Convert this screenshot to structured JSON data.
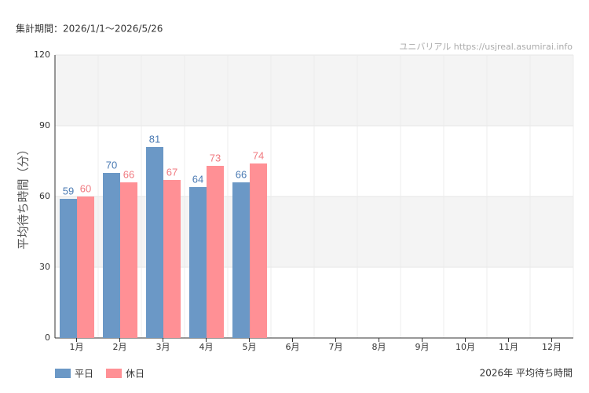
{
  "chart_data": {
    "type": "bar",
    "subtitle": "集計期間：2026/1/1～2026/5/26",
    "source": "ユニバリアル  https://usjreal.asumirai.info",
    "y_label": "平均待ち時間（分）",
    "footer": "2026年 平均待ち時間",
    "categories": [
      "1月",
      "2月",
      "3月",
      "4月",
      "5月",
      "6月",
      "7月",
      "8月",
      "9月",
      "10月",
      "11月",
      "12月"
    ],
    "series": [
      {
        "name": "平日",
        "color": "#6b98c6",
        "label_color": "#4a7ab3",
        "values": [
          59,
          70,
          81,
          64,
          66,
          null,
          null,
          null,
          null,
          null,
          null,
          null
        ]
      },
      {
        "name": "休日",
        "color": "#ff9095",
        "label_color": "#f07a80",
        "values": [
          60,
          66,
          67,
          73,
          74,
          null,
          null,
          null,
          null,
          null,
          null,
          null
        ]
      }
    ],
    "ylim": [
      0,
      120
    ],
    "yticks": [
      0,
      30,
      60,
      90,
      120
    ],
    "grid": true
  }
}
